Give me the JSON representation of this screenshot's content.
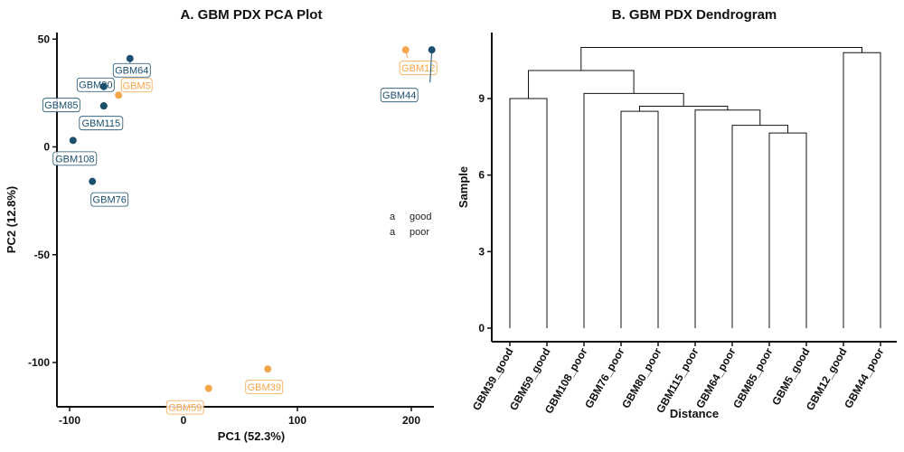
{
  "chart_data": [
    {
      "type": "scatter",
      "title": "A. GBM PDX PCA Plot",
      "xlabel": "PC1 (52.3%)",
      "ylabel": "PC2 (12.8%)",
      "xlim": [
        -112,
        225
      ],
      "ylim": [
        -121,
        52
      ],
      "xticks": [
        -100,
        0,
        100,
        200
      ],
      "yticks": [
        50,
        0,
        -50,
        -100
      ],
      "legend": {
        "placement": "right",
        "glyph": "a",
        "entries": [
          {
            "label": "good",
            "color": "#F5A54A"
          },
          {
            "label": "poor",
            "color": "#1B4F6E"
          }
        ]
      },
      "series": [
        {
          "name": "good",
          "color": "#F5A54A",
          "points": [
            {
              "label": "GBM12",
              "x": 195,
              "y": 45
            },
            {
              "label": "GBM5",
              "x": -57,
              "y": 24
            },
            {
              "label": "GBM39",
              "x": 74,
              "y": -103
            },
            {
              "label": "GBM59",
              "x": 22,
              "y": -112
            }
          ]
        },
        {
          "name": "poor",
          "color": "#1B4F6E",
          "points": [
            {
              "label": "GBM44",
              "x": 218,
              "y": 45
            },
            {
              "label": "GBM64",
              "x": -47,
              "y": 41
            },
            {
              "label": "GBM80",
              "x": -70,
              "y": 28
            },
            {
              "label": "GBM85",
              "x": -70,
              "y": 19
            },
            {
              "label": "GBM115",
              "x": -70,
              "y": 19
            },
            {
              "label": "GBM108",
              "x": -97,
              "y": 3
            },
            {
              "label": "GBM76",
              "x": -80,
              "y": -16
            }
          ]
        }
      ]
    },
    {
      "type": "dendrogram",
      "title": "B. GBM PDX Dendrogram",
      "xlabel": "Distance",
      "ylabel": "Sample",
      "ylim": [
        -0.4,
        11.5
      ],
      "yticks": [
        0,
        3,
        6,
        9
      ],
      "leaves": [
        "GBM39_good",
        "GBM59_good",
        "GBM108_poor",
        "GBM76_poor",
        "GBM80_poor",
        "GBM115_poor",
        "GBM64_poor",
        "GBM85_poor",
        "GBM5_good",
        "GBM12_good",
        "GBM44_poor"
      ],
      "merges": [
        {
          "left": 0,
          "right": 1,
          "height": 9.0
        },
        {
          "left": 9,
          "right": 10,
          "height": 10.8
        },
        {
          "left": 7,
          "right": 8,
          "height": 7.65
        },
        {
          "left": 6,
          "right": -3,
          "height": 7.95
        },
        {
          "left": 5,
          "right": -4,
          "height": 8.55
        },
        {
          "left": 3,
          "right": 4,
          "height": 8.5
        },
        {
          "left": -6,
          "right": -5,
          "height": 8.7
        },
        {
          "left": 2,
          "right": -7,
          "height": 9.2
        },
        {
          "left": -1,
          "right": -8,
          "height": 10.1
        },
        {
          "left": -9,
          "right": -2,
          "height": 11.0
        }
      ]
    }
  ]
}
